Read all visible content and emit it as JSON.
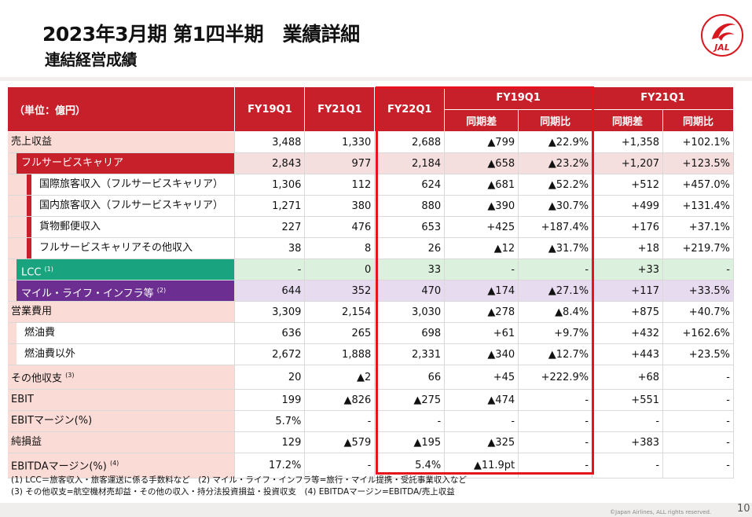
{
  "title": "2023年3月期 第1四半期　業績詳細",
  "subtitle": "連結経営成績",
  "logo_text": "JAL",
  "header": {
    "unit": "（単位：億円）",
    "fy19q1": "FY19Q1",
    "fy21q1": "FY21Q1",
    "fy22q1": "FY22Q1",
    "grp19": "FY19Q1",
    "grp21": "FY21Q1",
    "diff": "同期差",
    "ratio": "同期比",
    "diff2": "同期差",
    "ratio2": "同期比"
  },
  "rows": [
    {
      "label": "売上収益",
      "note": "",
      "cells": [
        "3,488",
        "1,330",
        "2,688",
        "▲799",
        "▲22.9%",
        "+1,358",
        "+102.1%"
      ]
    },
    {
      "label": "フルサービスキャリア",
      "note": "",
      "cells": [
        "2,843",
        "977",
        "2,184",
        "▲658",
        "▲23.2%",
        "+1,207",
        "+123.5%"
      ]
    },
    {
      "label": "国際旅客収入（フルサービスキャリア）",
      "note": "",
      "cells": [
        "1,306",
        "112",
        "624",
        "▲681",
        "▲52.2%",
        "+512",
        "+457.0%"
      ]
    },
    {
      "label": "国内旅客収入（フルサービスキャリア）",
      "note": "",
      "cells": [
        "1,271",
        "380",
        "880",
        "▲390",
        "▲30.7%",
        "+499",
        "+131.4%"
      ]
    },
    {
      "label": "貨物郵便収入",
      "note": "",
      "cells": [
        "227",
        "476",
        "653",
        "+425",
        "+187.4%",
        "+176",
        "+37.1%"
      ]
    },
    {
      "label": "フルサービスキャリアその他収入",
      "note": "",
      "cells": [
        "38",
        "8",
        "26",
        "▲12",
        "▲31.7%",
        "+18",
        "+219.7%"
      ]
    },
    {
      "label": "LCC",
      "note": "(1)",
      "cells": [
        "-",
        "0",
        "33",
        "-",
        "-",
        "+33",
        "-"
      ]
    },
    {
      "label": "マイル・ライフ・インフラ等",
      "note": "(2)",
      "cells": [
        "644",
        "352",
        "470",
        "▲174",
        "▲27.1%",
        "+117",
        "+33.5%"
      ]
    },
    {
      "label": "営業費用",
      "note": "",
      "cells": [
        "3,309",
        "2,154",
        "3,030",
        "▲278",
        "▲8.4%",
        "+875",
        "+40.7%"
      ]
    },
    {
      "label": "燃油費",
      "note": "",
      "cells": [
        "636",
        "265",
        "698",
        "+61",
        "+9.7%",
        "+432",
        "+162.6%"
      ]
    },
    {
      "label": "燃油費以外",
      "note": "",
      "cells": [
        "2,672",
        "1,888",
        "2,331",
        "▲340",
        "▲12.7%",
        "+443",
        "+23.5%"
      ]
    },
    {
      "label": "その他収支",
      "note": "(3)",
      "cells": [
        "20",
        "▲2",
        "66",
        "+45",
        "+222.9%",
        "+68",
        "-"
      ]
    },
    {
      "label": "EBIT",
      "note": "",
      "cells": [
        "199",
        "▲826",
        "▲275",
        "▲474",
        "-",
        "+551",
        "-"
      ]
    },
    {
      "label": "EBITマージン(%)",
      "note": "",
      "cells": [
        "5.7%",
        "-",
        "-",
        "-",
        "-",
        "-",
        "-"
      ]
    },
    {
      "label": "純損益",
      "note": "",
      "cells": [
        "129",
        "▲579",
        "▲195",
        "▲325",
        "-",
        "+383",
        "-"
      ]
    },
    {
      "label": "EBITDAマージン(%)",
      "note": "(4)",
      "cells": [
        "17.2%",
        "-",
        "5.4%",
        "▲11.9pt",
        "-",
        "-",
        "-"
      ]
    }
  ],
  "notes": [
    "(1) LCC＝旅客収入・旅客運送に係る手数料など　(2) マイル・ライフ・インフラ等=旅行・マイル提携・受託事業収入など",
    "(3) その他収支=航空機材売却益・その他の収入・持分法投資損益・投資収支　(4) EBITDAマージン=EBITDA/売上収益"
  ],
  "copyright": "©Japan Airlines, ALL rights reserved.",
  "page_number": "10",
  "colors": {
    "jal_red": "#c8202a",
    "highlight": "#e8141d",
    "lcc_green": "#1aa37f",
    "mile_purple": "#6c2f91",
    "label_pink": "#fbdbd6"
  }
}
